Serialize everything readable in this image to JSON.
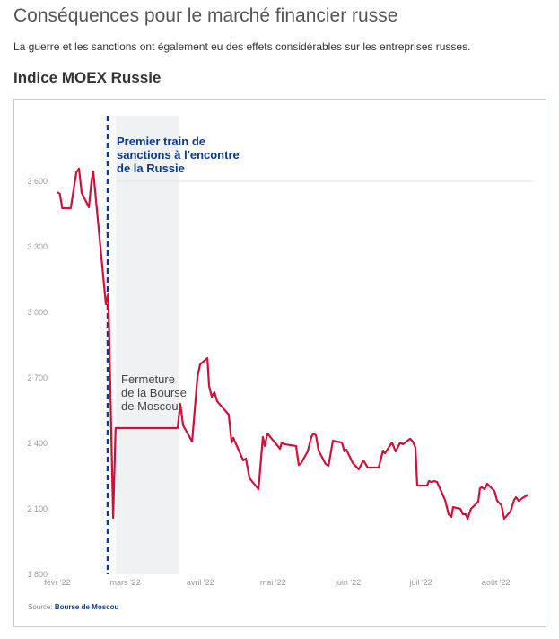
{
  "header": {
    "title": "Conséquences pour le marché financier russe",
    "subtitle": "La guerre et les sanctions ont également eu des effets considérables sur les entreprises russes."
  },
  "chart_data": {
    "type": "line",
    "title": "Indice MOEX Russie",
    "xlabel": "",
    "ylabel": "",
    "x_unit": "jours depuis le 1er février 2022",
    "ylim": [
      1800,
      3750
    ],
    "xlim": [
      0,
      196
    ],
    "yticks": [
      {
        "value": 1800,
        "label": "1 800"
      },
      {
        "value": 2100,
        "label": "2 100"
      },
      {
        "value": 2400,
        "label": "2 400"
      },
      {
        "value": 2700,
        "label": "2 700"
      },
      {
        "value": 3000,
        "label": "3 000"
      },
      {
        "value": 3300,
        "label": "3 300"
      },
      {
        "value": 3600,
        "label": "3 600"
      }
    ],
    "xticks": [
      {
        "value": 0,
        "label": "févr '22"
      },
      {
        "value": 28,
        "label": "mars '22"
      },
      {
        "value": 59,
        "label": "avril '22"
      },
      {
        "value": 89,
        "label": "mai '22"
      },
      {
        "value": 120,
        "label": "juin '22"
      },
      {
        "value": 150,
        "label": "juil '22"
      },
      {
        "value": 181,
        "label": "août '22"
      }
    ],
    "grid": "y=3600",
    "series": [
      {
        "name": "Indice MOEX Russie",
        "color": "#d0103a",
        "points": [
          [
            0,
            3550
          ],
          [
            1,
            3543
          ],
          [
            2,
            3477
          ],
          [
            5.5,
            3477
          ],
          [
            7.8,
            3641
          ],
          [
            8.9,
            3658
          ],
          [
            10,
            3547
          ],
          [
            13,
            3481
          ],
          [
            14,
            3596
          ],
          [
            14.8,
            3645
          ],
          [
            20,
            3037
          ],
          [
            21,
            3086
          ],
          [
            23,
            2059
          ],
          [
            24,
            2470
          ],
          [
            49.6,
            2470
          ],
          [
            50.7,
            2581
          ],
          [
            51.9,
            2482
          ],
          [
            55.6,
            2408
          ],
          [
            57.8,
            2704
          ],
          [
            58.9,
            2762
          ],
          [
            61.9,
            2790
          ],
          [
            62.6,
            2663
          ],
          [
            63.7,
            2614
          ],
          [
            64.8,
            2634
          ],
          [
            65.9,
            2593
          ],
          [
            70.7,
            2532
          ],
          [
            71.9,
            2404
          ],
          [
            72.6,
            2425
          ],
          [
            76.7,
            2322
          ],
          [
            77.8,
            2330
          ],
          [
            79.3,
            2240
          ],
          [
            83,
            2190
          ],
          [
            84.8,
            2429
          ],
          [
            85.6,
            2388
          ],
          [
            86.7,
            2445
          ],
          [
            91.9,
            2375
          ],
          [
            92.6,
            2404
          ],
          [
            93.7,
            2396
          ],
          [
            98.5,
            2388
          ],
          [
            99.6,
            2301
          ],
          [
            100.4,
            2306
          ],
          [
            103.3,
            2363
          ],
          [
            104.8,
            2429
          ],
          [
            105.6,
            2445
          ],
          [
            106.7,
            2437
          ],
          [
            107.8,
            2367
          ],
          [
            110.7,
            2306
          ],
          [
            111.9,
            2297
          ],
          [
            113.7,
            2412
          ],
          [
            117.4,
            2404
          ],
          [
            118.5,
            2363
          ],
          [
            119.3,
            2371
          ],
          [
            121.9,
            2310
          ],
          [
            124.4,
            2281
          ],
          [
            126.3,
            2322
          ],
          [
            128.1,
            2289
          ],
          [
            132.6,
            2289
          ],
          [
            134.4,
            2367
          ],
          [
            135.2,
            2355
          ],
          [
            138.1,
            2404
          ],
          [
            139.6,
            2363
          ],
          [
            141.5,
            2404
          ],
          [
            142.6,
            2396
          ],
          [
            145.6,
            2421
          ],
          [
            146.7,
            2408
          ],
          [
            147.8,
            2380
          ],
          [
            148.5,
            2207
          ],
          [
            152.6,
            2207
          ],
          [
            153.3,
            2227
          ],
          [
            154.4,
            2223
          ],
          [
            155.6,
            2227
          ],
          [
            156.7,
            2223
          ],
          [
            160,
            2141
          ],
          [
            161.5,
            2075
          ],
          [
            162.6,
            2063
          ],
          [
            163.3,
            2108
          ],
          [
            166.3,
            2100
          ],
          [
            167.4,
            2075
          ],
          [
            168.5,
            2075
          ],
          [
            169.3,
            2055
          ],
          [
            170.7,
            2100
          ],
          [
            173.7,
            2133
          ],
          [
            174.4,
            2194
          ],
          [
            175.2,
            2199
          ],
          [
            176.3,
            2190
          ],
          [
            177.4,
            2215
          ],
          [
            180.4,
            2182
          ],
          [
            181.5,
            2137
          ],
          [
            183.3,
            2116
          ],
          [
            184.4,
            2055
          ],
          [
            187,
            2088
          ],
          [
            188.5,
            2141
          ],
          [
            189.3,
            2153
          ],
          [
            190.4,
            2137
          ],
          [
            191.9,
            2149
          ],
          [
            194.4,
            2166
          ]
        ]
      }
    ],
    "annotations": [
      {
        "type": "vline",
        "x": 20.7,
        "color": "#0a3a8c",
        "label": [
          "Premier train de",
          "sanctions à l'encontre",
          "de la Russie"
        ]
      },
      {
        "type": "band",
        "x0": 24,
        "x1": 50.4,
        "color": "#f0f1f3",
        "label": [
          "Fermeture",
          "de la Bourse",
          "de Moscou"
        ]
      }
    ],
    "source_label": "Source:",
    "source": "Bourse de Moscou"
  }
}
